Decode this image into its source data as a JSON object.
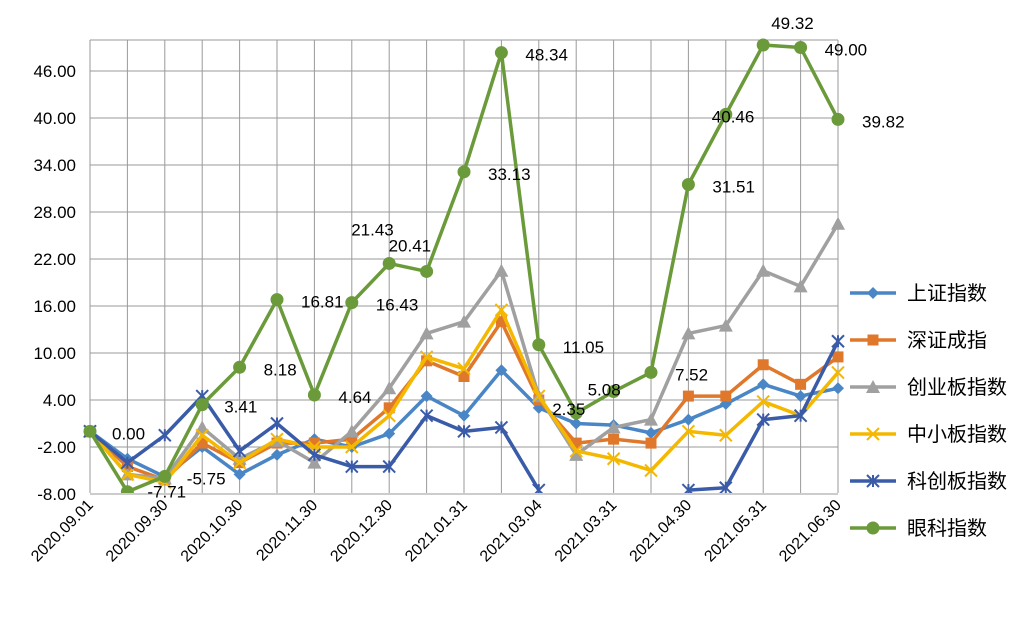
{
  "chart_data": {
    "type": "line",
    "title": "",
    "xlabel": "",
    "ylabel": "",
    "ylim": [
      -8,
      49
    ],
    "yticks": [
      "46.00",
      "40.00",
      "34.00",
      "28.00",
      "22.00",
      "16.00",
      "10.00",
      "4.00",
      "-2.00",
      "-8.00"
    ],
    "ytick_values": [
      46,
      40,
      34,
      28,
      22,
      16,
      10,
      4,
      -2,
      -8
    ],
    "x_tick_labels": [
      "2020.09.01",
      "2020.09.30",
      "2020.10.30",
      "2020.11.30",
      "2020.12.30",
      "2021.01.31",
      "2021.03.04",
      "2021.03.31",
      "2021.04.30",
      "2021.05.31",
      "2021.06.30"
    ],
    "grid": true,
    "legend_position": "right",
    "series": [
      {
        "name": "上证指数",
        "color": "#4a86c6",
        "marker": "diamond",
        "values": [
          0,
          -3.5,
          -5.8,
          -2,
          -5.5,
          -3,
          -1,
          -2,
          -0.3,
          4.5,
          2,
          7.8,
          3,
          1,
          0.8,
          -0.2,
          1.5,
          3.5,
          6,
          4.5,
          5.5
        ]
      },
      {
        "name": "深证成指",
        "color": "#e0782c",
        "marker": "square",
        "values": [
          0,
          -4.5,
          -6.2,
          -1.5,
          -4,
          -1.5,
          -1.5,
          -1,
          3,
          9,
          7,
          14,
          4,
          -1.5,
          -1,
          -1.5,
          4.5,
          4.5,
          8.5,
          6,
          9.5
        ]
      },
      {
        "name": "创业板指数",
        "color": "#a0a0a0",
        "marker": "triangle",
        "values": [
          0,
          -5.5,
          -6,
          0.5,
          -3.5,
          -1.2,
          -4,
          0,
          5.5,
          12.5,
          14,
          20.5,
          4.5,
          -3,
          0.5,
          1.5,
          12.5,
          13.5,
          20.5,
          18.5,
          26.5
        ]
      },
      {
        "name": "中小板指数",
        "color": "#f5b800",
        "marker": "x",
        "values": [
          0,
          -5.5,
          -6.5,
          -0.5,
          -4,
          -1,
          -2,
          -2,
          2,
          9.5,
          8,
          15.5,
          4.5,
          -2.5,
          -3.5,
          -5,
          0,
          -0.5,
          3.8,
          2,
          7.5
        ]
      },
      {
        "name": "科创板指数",
        "color": "#3a5ba8",
        "marker": "star",
        "values": [
          0,
          -4,
          -0.5,
          4.5,
          -2.5,
          1,
          -3,
          -4.5,
          -4.5,
          2,
          0,
          0.5,
          -7.5,
          null,
          null,
          null,
          -7.5,
          -7.2,
          1.5,
          2,
          11.5
        ]
      },
      {
        "name": "眼科指数",
        "color": "#6a9a3a",
        "marker": "circle",
        "values": [
          0,
          -7.71,
          -5.75,
          3.41,
          8.18,
          16.81,
          4.64,
          16.43,
          21.43,
          20.41,
          33.13,
          48.34,
          11.05,
          2.35,
          5.08,
          7.52,
          31.51,
          40.46,
          49.32,
          49.0,
          39.82
        ]
      }
    ],
    "data_labels": [
      {
        "text": "0.00",
        "index": 0,
        "value": 0
      },
      {
        "text": "-7.71",
        "index": 1,
        "value": -7.71,
        "color": "#ff0000"
      },
      {
        "text": "-5.75",
        "index": 2,
        "value": -5.75,
        "color": "#ff0000"
      },
      {
        "text": "3.41",
        "index": 3,
        "value": 3.41
      },
      {
        "text": "8.18",
        "index": 4,
        "value": 8.18
      },
      {
        "text": "16.81",
        "index": 5,
        "value": 16.81
      },
      {
        "text": "4.64",
        "index": 6,
        "value": 4.64
      },
      {
        "text": "16.43",
        "index": 7,
        "value": 16.43
      },
      {
        "text": "21.43",
        "index": 8,
        "value": 21.43
      },
      {
        "text": "20.41",
        "index": 9,
        "value": 20.41
      },
      {
        "text": "33.13",
        "index": 10,
        "value": 33.13
      },
      {
        "text": "48.34",
        "index": 11,
        "value": 48.34
      },
      {
        "text": "11.05",
        "index": 12,
        "value": 11.05
      },
      {
        "text": "2.35",
        "index": 13,
        "value": 2.35
      },
      {
        "text": "5.08",
        "index": 14,
        "value": 5.08
      },
      {
        "text": "7.52",
        "index": 15,
        "value": 7.52
      },
      {
        "text": "31.51",
        "index": 16,
        "value": 31.51
      },
      {
        "text": "40.46",
        "index": 17,
        "value": 40.46
      },
      {
        "text": "49.32",
        "index": 18,
        "value": 49.32
      },
      {
        "text": "49.00",
        "index": 19,
        "value": 49.0
      },
      {
        "text": "39.82",
        "index": 20,
        "value": 39.82
      }
    ]
  }
}
